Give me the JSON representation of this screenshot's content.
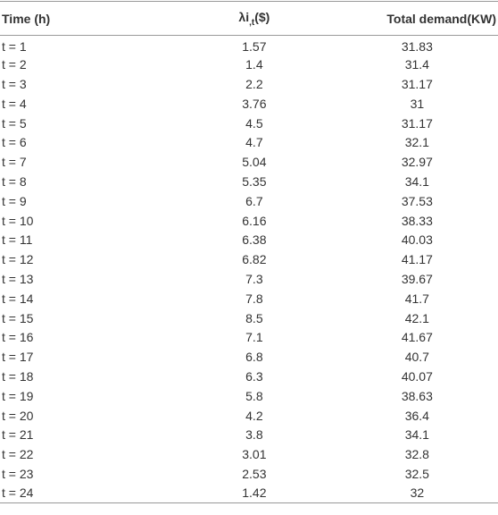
{
  "table": {
    "header": [
      "Time (h)",
      {
        "main": "λi",
        "sub": ",t",
        "unit": "($)"
      },
      "Total demand(KW)"
    ],
    "rows": [
      [
        "t = 1",
        1.57,
        31.83
      ],
      [
        "t = 2",
        1.4,
        31.4
      ],
      [
        "t = 3",
        2.2,
        31.17
      ],
      [
        "t = 4",
        3.76,
        31
      ],
      [
        "t = 5",
        4.5,
        31.17
      ],
      [
        "t = 6",
        4.7,
        32.1
      ],
      [
        "t = 7",
        5.04,
        32.97
      ],
      [
        "t = 8",
        5.35,
        34.1
      ],
      [
        "t = 9",
        6.7,
        37.53
      ],
      [
        "t = 10",
        6.16,
        38.33
      ],
      [
        "t = 11",
        6.38,
        40.03
      ],
      [
        "t = 12",
        6.82,
        41.17
      ],
      [
        "t = 13",
        7.3,
        39.67
      ],
      [
        "t = 14",
        7.8,
        41.7
      ],
      [
        "t = 15",
        8.5,
        42.1
      ],
      [
        "t = 16",
        7.1,
        41.67
      ],
      [
        "t = 17",
        6.8,
        40.7
      ],
      [
        "t = 18",
        6.3,
        40.07
      ],
      [
        "t = 19",
        5.8,
        38.63
      ],
      [
        "t = 20",
        4.2,
        36.4
      ],
      [
        "t = 21",
        3.8,
        34.1
      ],
      [
        "t = 22",
        3.01,
        32.8
      ],
      [
        "t = 23",
        2.53,
        32.5
      ],
      [
        "t = 24",
        1.42,
        32
      ]
    ]
  }
}
